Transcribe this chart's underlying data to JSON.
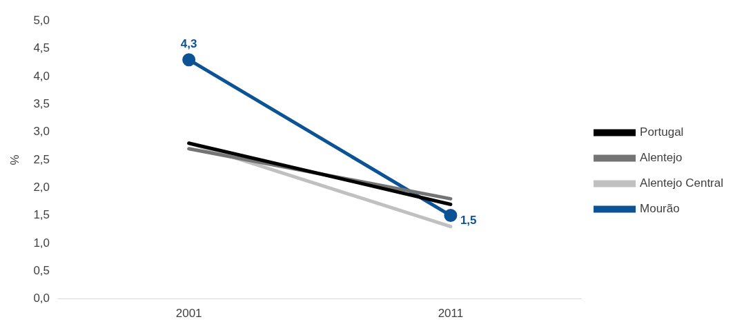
{
  "chart_data": {
    "type": "line",
    "ylabel": "%",
    "categories": [
      "2001",
      "2011"
    ],
    "series": [
      {
        "name": "Portugal",
        "color": "#000000",
        "values": [
          2.8,
          1.7
        ],
        "marker": "none"
      },
      {
        "name": "Alentejo",
        "color": "#747474",
        "values": [
          2.7,
          1.8
        ],
        "marker": "none"
      },
      {
        "name": "Alentejo Central",
        "color": "#c0c0c0",
        "values": [
          2.8,
          1.3
        ],
        "marker": "none"
      },
      {
        "name": "Mourão",
        "color": "#0b5394",
        "values": [
          4.3,
          1.5
        ],
        "marker": "circle",
        "value_labels": [
          "4,3",
          "1,5"
        ]
      }
    ],
    "ylim": [
      0,
      5
    ],
    "yticks": [
      {
        "value": 0,
        "label": "0,0"
      },
      {
        "value": 0.5,
        "label": "0,5"
      },
      {
        "value": 1,
        "label": "1,0"
      },
      {
        "value": 1.5,
        "label": "1,5"
      },
      {
        "value": 2,
        "label": "2,0"
      },
      {
        "value": 2.5,
        "label": "2,5"
      },
      {
        "value": 3,
        "label": "3,0"
      },
      {
        "value": 3.5,
        "label": "3,5"
      },
      {
        "value": 4,
        "label": "4,0"
      },
      {
        "value": 4.5,
        "label": "4,5"
      },
      {
        "value": 5,
        "label": "5,0"
      }
    ],
    "grid": false,
    "legend": "right",
    "line_style": "solid"
  }
}
